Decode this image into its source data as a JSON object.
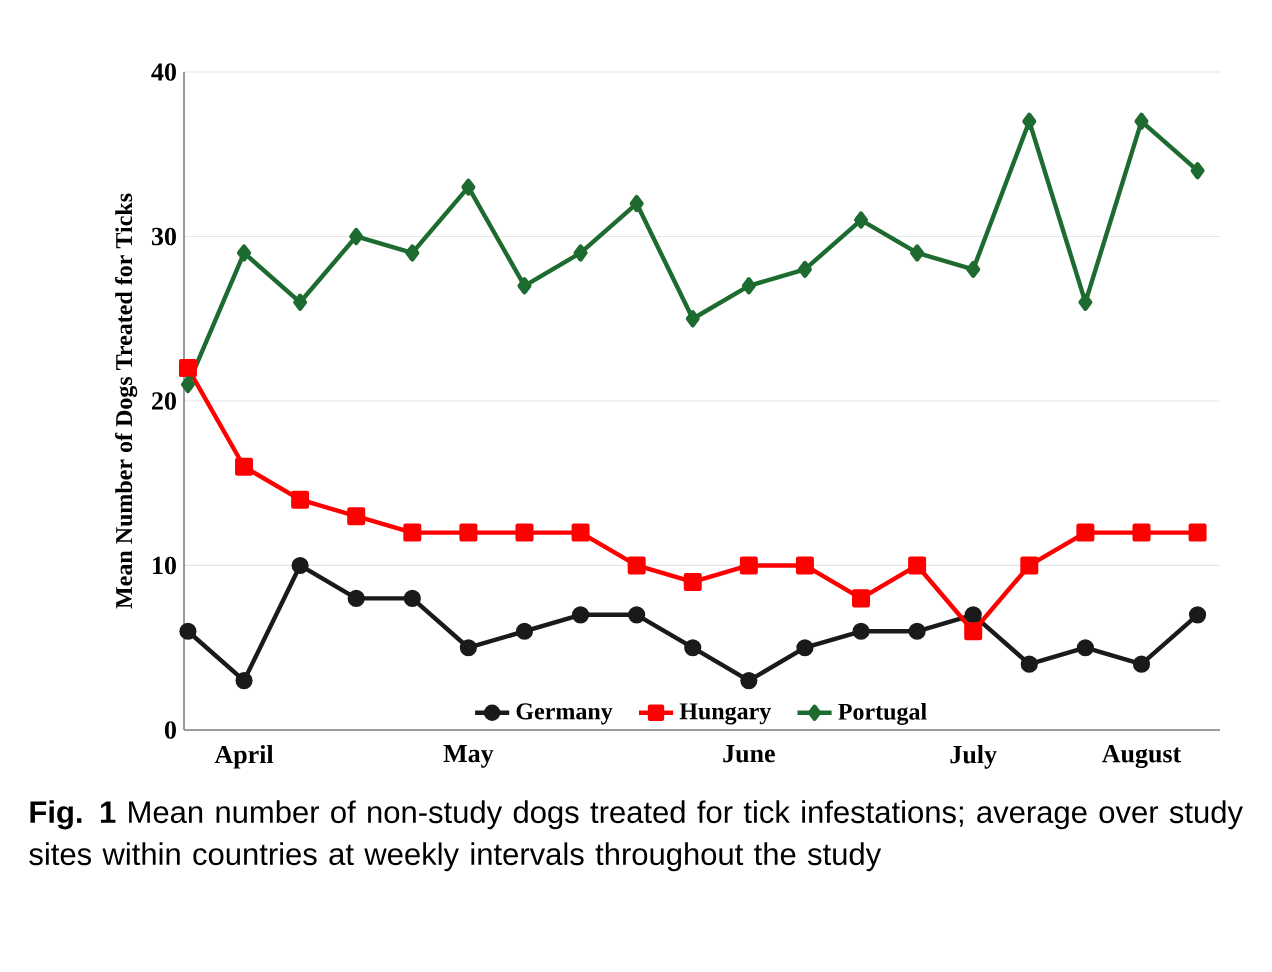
{
  "chart_data": {
    "type": "line",
    "ylabel": "Mean Number of Dogs Treated for Ticks",
    "categories": [
      null,
      "April",
      null,
      null,
      null,
      "May",
      null,
      null,
      null,
      null,
      "June",
      null,
      null,
      null,
      "July",
      null,
      null,
      "August",
      null
    ],
    "series": [
      {
        "name": "Germany",
        "color": "#1a1a1a",
        "marker": "circle",
        "values": [
          6,
          3,
          10,
          8,
          8,
          5,
          6,
          7,
          7,
          5,
          3,
          5,
          6,
          6,
          7,
          4,
          5,
          4,
          7
        ]
      },
      {
        "name": "Hungary",
        "color": "#ff0000",
        "marker": "square",
        "values": [
          22,
          16,
          14,
          13,
          12,
          12,
          12,
          12,
          10,
          9,
          10,
          10,
          8,
          10,
          6,
          10,
          12,
          12,
          12
        ]
      },
      {
        "name": "Portugal",
        "color": "#1e6b30",
        "marker": "diamond",
        "values": [
          21,
          29,
          26,
          30,
          29,
          33,
          27,
          29,
          32,
          25,
          27,
          28,
          31,
          29,
          28,
          37,
          26,
          37,
          34
        ]
      }
    ],
    "ylim": [
      0,
      40
    ],
    "yticks": [
      0,
      10,
      20,
      30,
      40
    ],
    "grid": "y",
    "legend": "bottom",
    "line_style": "solid",
    "annotations": [
      "**Fig. 1** Mean number of non-study dogs treated for tick infestations; average over study sites within countries at weekly intervals throughout the study"
    ]
  }
}
